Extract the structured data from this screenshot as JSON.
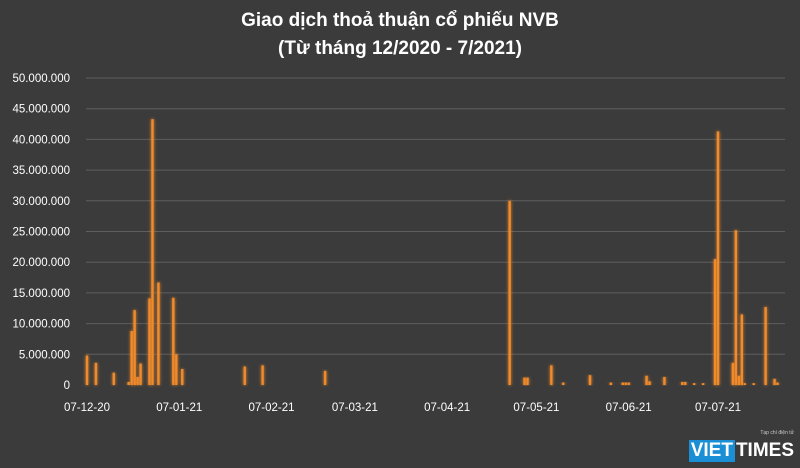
{
  "chart_data": {
    "type": "bar",
    "title": "Giao dịch thoả thuận cổ phiếu NVB",
    "subtitle": "(Từ tháng 12/2020 - 7/2021)",
    "xlabel": "",
    "ylabel": "",
    "ylim": [
      0,
      50000000
    ],
    "yticks": [
      "0",
      "5.000.000",
      "10.000.000",
      "15.000.000",
      "20.000.000",
      "25.000.000",
      "30.000.000",
      "35.000.000",
      "40.000.000",
      "45.000.000",
      "50.000.000"
    ],
    "xtick_dates": [
      "2020-12-07",
      "2021-01-07",
      "2021-02-07",
      "2021-03-07",
      "2021-04-07",
      "2021-05-07",
      "2021-06-07",
      "2021-07-07"
    ],
    "xtick_labels": [
      "07-12-20",
      "07-01-21",
      "07-02-21",
      "07-03-21",
      "07-04-21",
      "07-05-21",
      "07-06-21",
      "07-07-21"
    ],
    "grid": true,
    "bar_color": "#f08a2c",
    "points": [
      [
        "2020-12-07",
        4800000
      ],
      [
        "2020-12-10",
        3600000
      ],
      [
        "2020-12-16",
        2000000
      ],
      [
        "2020-12-21",
        500000
      ],
      [
        "2020-12-22",
        8800000
      ],
      [
        "2020-12-23",
        12200000
      ],
      [
        "2020-12-24",
        1300000
      ],
      [
        "2020-12-25",
        3500000
      ],
      [
        "2020-12-28",
        14100000
      ],
      [
        "2020-12-29",
        43300000
      ],
      [
        "2020-12-31",
        16700000
      ],
      [
        "2021-01-05",
        14200000
      ],
      [
        "2021-01-06",
        5000000
      ],
      [
        "2021-01-08",
        2600000
      ],
      [
        "2021-01-29",
        3000000
      ],
      [
        "2021-02-04",
        3200000
      ],
      [
        "2021-02-25",
        2300000
      ],
      [
        "2021-04-28",
        30000000
      ],
      [
        "2021-05-03",
        1200000
      ],
      [
        "2021-05-04",
        1200000
      ],
      [
        "2021-05-12",
        3200000
      ],
      [
        "2021-05-16",
        400000
      ],
      [
        "2021-05-25",
        1600000
      ],
      [
        "2021-06-01",
        400000
      ],
      [
        "2021-06-05",
        400000
      ],
      [
        "2021-06-06",
        400000
      ],
      [
        "2021-06-07",
        400000
      ],
      [
        "2021-06-13",
        1500000
      ],
      [
        "2021-06-14",
        600000
      ],
      [
        "2021-06-19",
        1300000
      ],
      [
        "2021-06-25",
        500000
      ],
      [
        "2021-06-26",
        500000
      ],
      [
        "2021-06-29",
        300000
      ],
      [
        "2021-07-02",
        300000
      ],
      [
        "2021-07-06",
        20500000
      ],
      [
        "2021-07-07",
        41300000
      ],
      [
        "2021-07-12",
        3600000
      ],
      [
        "2021-07-13",
        25200000
      ],
      [
        "2021-07-14",
        1500000
      ],
      [
        "2021-07-15",
        11500000
      ],
      [
        "2021-07-16",
        300000
      ],
      [
        "2021-07-19",
        300000
      ],
      [
        "2021-07-23",
        12700000
      ],
      [
        "2021-07-26",
        1000000
      ],
      [
        "2021-07-27",
        400000
      ]
    ]
  },
  "logo": {
    "viet": "VIET",
    "times": "TIMES",
    "tagline": "Tạp chí điện tử"
  }
}
